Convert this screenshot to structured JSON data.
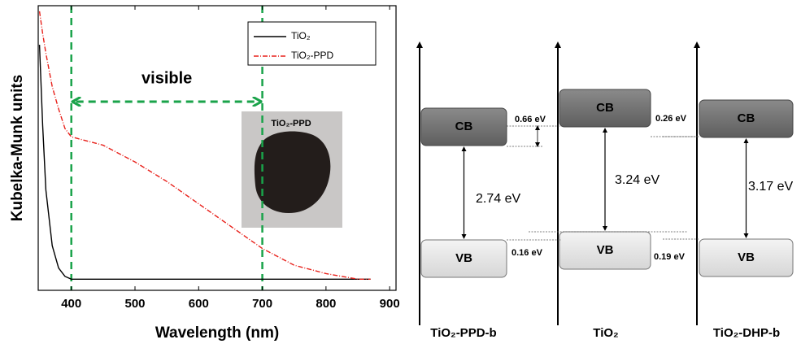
{
  "chart_data": {
    "type": "line",
    "x_label": "Wavelength (nm)",
    "y_label": "Kubelka-Munk units",
    "x": [
      350,
      355,
      360,
      370,
      380,
      390,
      400,
      450,
      500,
      550,
      600,
      650,
      700,
      750,
      800,
      850,
      870
    ],
    "series": [
      {
        "name": "TiO₂",
        "color": "#000000",
        "dash": "solid",
        "values": [
          0.88,
          0.59,
          0.36,
          0.16,
          0.08,
          0.05,
          0.04,
          0.04,
          0.04,
          0.04,
          0.04,
          0.04,
          0.04,
          0.04,
          0.04,
          0.04,
          0.04
        ]
      },
      {
        "name": "TiO₂-PPD",
        "color": "#e8201a",
        "dash": "dashdot",
        "values": [
          1.0,
          0.92,
          0.85,
          0.73,
          0.65,
          0.58,
          0.55,
          0.52,
          0.46,
          0.39,
          0.31,
          0.23,
          0.15,
          0.09,
          0.06,
          0.04,
          0.04
        ]
      }
    ],
    "xlim": [
      348,
      910
    ],
    "ylim": [
      0,
      1.02
    ],
    "xticks": [
      400,
      500,
      600,
      700,
      800,
      900
    ],
    "reference_lines": [
      400,
      700
    ],
    "reference_color": "#1aa34a",
    "annotation": "visible",
    "inset_label": "TiO₂-PPD",
    "legend": "upper right"
  },
  "diagram": {
    "cb_label": "CB",
    "vb_label": "VB",
    "materials": [
      {
        "label": "TiO₂-PPD-b",
        "gap": "2.74 eV",
        "cb_offset": "0.66 eV",
        "vb_offset": "0.16 eV"
      },
      {
        "label": "TiO₂",
        "gap": "3.24 eV",
        "cb_offset": "0.26 eV",
        "vb_offset": "0.19 eV"
      },
      {
        "label": "TiO₂-DHP-b",
        "gap": "3.17 eV"
      }
    ]
  }
}
